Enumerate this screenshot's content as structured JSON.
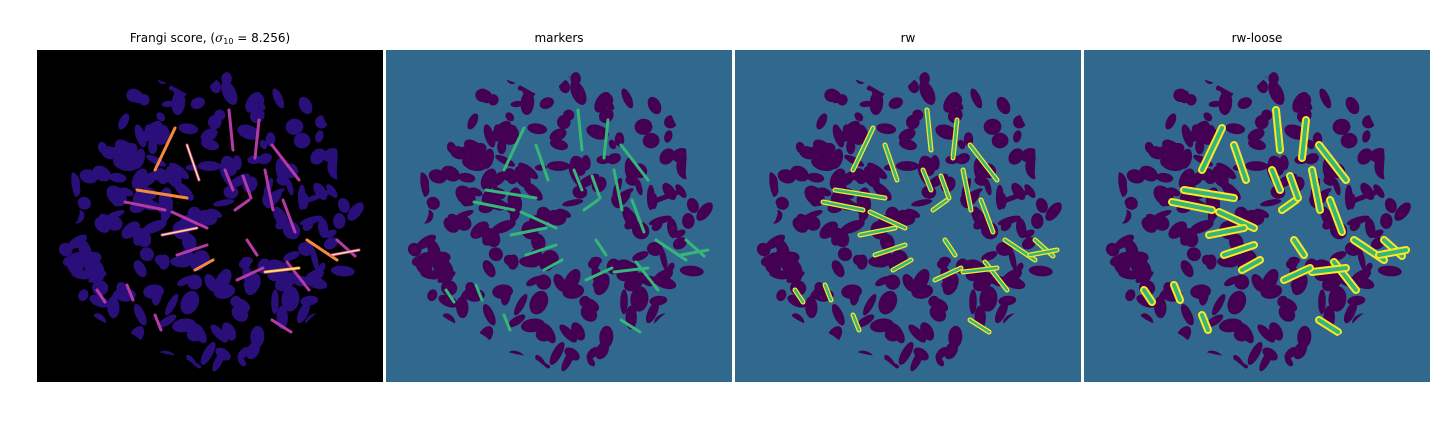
{
  "panels": [
    {
      "title": "Frangi score, (",
      "title_symbol": "σ",
      "title_subscript": "10",
      "title_suffix": " = 8.256)"
    },
    {
      "title": "markers"
    },
    {
      "title": "rw"
    },
    {
      "title": "rw-loose"
    }
  ],
  "colors": {
    "frangi_background": "#000000",
    "frangi_tissue": "#2a0f7a",
    "frangi_vessel_mid": "#b43aa8",
    "frangi_vessel_hot": "#f58a3c",
    "frangi_vessel_peak": "#fde28a",
    "seg_background": "#31688e",
    "seg_tissue": "#440154",
    "seg_marker": "#35b779",
    "seg_outline": "#fde725"
  }
}
